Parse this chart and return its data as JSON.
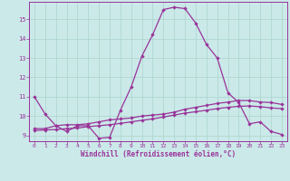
{
  "xlabel": "Windchill (Refroidissement éolien,°C)",
  "background_color": "#cbe9e9",
  "grid_color": "#aad4cc",
  "line_color": "#993399",
  "xlim": [
    -0.5,
    23.5
  ],
  "ylim": [
    8.7,
    15.9
  ],
  "xticks": [
    0,
    1,
    2,
    3,
    4,
    5,
    6,
    7,
    8,
    9,
    10,
    11,
    12,
    13,
    14,
    15,
    16,
    17,
    18,
    19,
    20,
    21,
    22,
    23
  ],
  "yticks": [
    9,
    10,
    11,
    12,
    13,
    14,
    15
  ],
  "line1_y": [
    11.0,
    10.1,
    9.5,
    9.2,
    9.5,
    9.5,
    8.85,
    8.9,
    10.3,
    11.5,
    13.1,
    14.2,
    15.5,
    15.62,
    15.55,
    14.8,
    13.7,
    13.0,
    11.2,
    10.7,
    9.6,
    9.7,
    9.2,
    9.05
  ],
  "line2_y": [
    9.35,
    9.35,
    9.5,
    9.55,
    9.55,
    9.6,
    9.7,
    9.8,
    9.85,
    9.9,
    10.0,
    10.05,
    10.1,
    10.2,
    10.35,
    10.45,
    10.55,
    10.65,
    10.72,
    10.8,
    10.8,
    10.72,
    10.7,
    10.6
  ],
  "line3_y": [
    9.25,
    9.28,
    9.3,
    9.35,
    9.38,
    9.45,
    9.5,
    9.55,
    9.62,
    9.7,
    9.78,
    9.85,
    9.95,
    10.05,
    10.15,
    10.22,
    10.3,
    10.38,
    10.45,
    10.5,
    10.52,
    10.48,
    10.42,
    10.38
  ]
}
